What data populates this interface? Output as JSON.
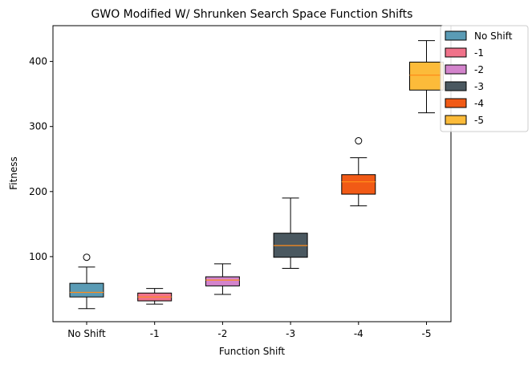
{
  "chart_data": {
    "type": "boxplot",
    "title": "GWO Modified W/ Shrunken Search Space Function Shifts",
    "xlabel": "Function Shift",
    "ylabel": "Fitness",
    "ylim": [
      0,
      455
    ],
    "yticks": [
      100,
      200,
      300,
      400
    ],
    "grid": false,
    "legend_position": "top-right",
    "categories": [
      "No Shift",
      "-1",
      "-2",
      "-3",
      "-4",
      "-5"
    ],
    "series": [
      {
        "name": "No Shift",
        "color": "#5a9bb5",
        "whisker_low": 20,
        "q1": 38,
        "median": 45,
        "q3": 59,
        "whisker_high": 84,
        "outliers": [
          99
        ]
      },
      {
        "name": "-1",
        "color": "#f0728a",
        "whisker_low": 27,
        "q1": 32,
        "median": 38,
        "q3": 44,
        "whisker_high": 51,
        "outliers": []
      },
      {
        "name": "-2",
        "color": "#d384cc",
        "whisker_low": 42,
        "q1": 55,
        "median": 64,
        "q3": 69,
        "whisker_high": 89,
        "outliers": []
      },
      {
        "name": "-3",
        "color": "#4a5860",
        "whisker_low": 82,
        "q1": 99,
        "median": 117,
        "q3": 136,
        "whisker_high": 190,
        "outliers": []
      },
      {
        "name": "-4",
        "color": "#f15a16",
        "whisker_low": 178,
        "q1": 196,
        "median": 215,
        "q3": 226,
        "whisker_high": 252,
        "outliers": [
          278
        ]
      },
      {
        "name": "-5",
        "color": "#fcbb3a",
        "whisker_low": 321,
        "q1": 356,
        "median": 379,
        "q3": 399,
        "whisker_high": 432,
        "outliers": []
      }
    ],
    "median_color": "#ff8c1a"
  }
}
